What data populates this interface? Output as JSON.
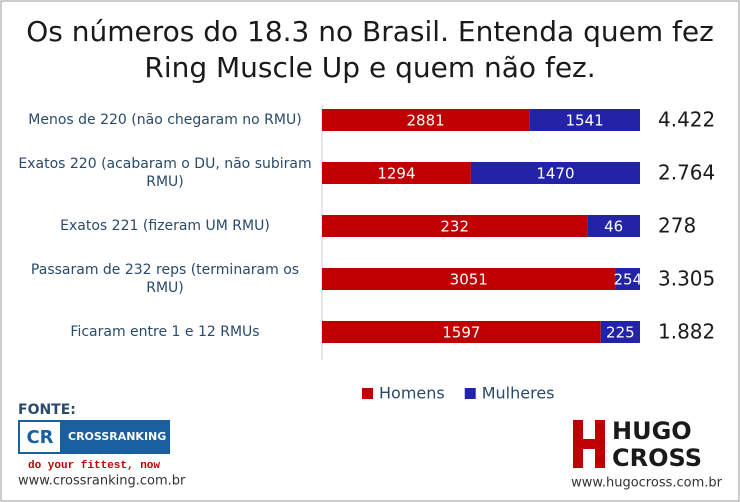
{
  "chart_data": {
    "type": "bar100h",
    "title": "Os números do 18.3 no Brasil. Entenda quem fez Ring Muscle Up e quem não fez.",
    "categories": [
      "Menos de 220 (não chegaram no RMU)",
      "Exatos 220 (acabaram o DU, não subiram RMU)",
      "Exatos 221 (fizeram UM RMU)",
      "Passaram de 232 reps (terminaram os RMU)",
      "Ficaram entre 1 e 12 RMUs"
    ],
    "series": [
      {
        "name": "Homens",
        "color": "#c00000",
        "values": [
          2881,
          1294,
          232,
          3051,
          1597
        ]
      },
      {
        "name": "Mulheres",
        "color": "#2323a8",
        "values": [
          1541,
          1470,
          46,
          254,
          225
        ]
      }
    ],
    "total_labels": [
      "4.422",
      "2.764",
      "278",
      "3.305",
      "1.882"
    ],
    "legend": "bottom"
  },
  "footer": {
    "source_label": "FONTE:",
    "left_logo": {
      "initials": "CR",
      "name": "CROSSRANKING",
      "tagline": "do your fittest, now"
    },
    "left_url": "www.crossranking.com.br",
    "right_logo": {
      "top": "HUGO",
      "bottom": "CROSS"
    },
    "right_url": "www.hugocross.com.br"
  }
}
